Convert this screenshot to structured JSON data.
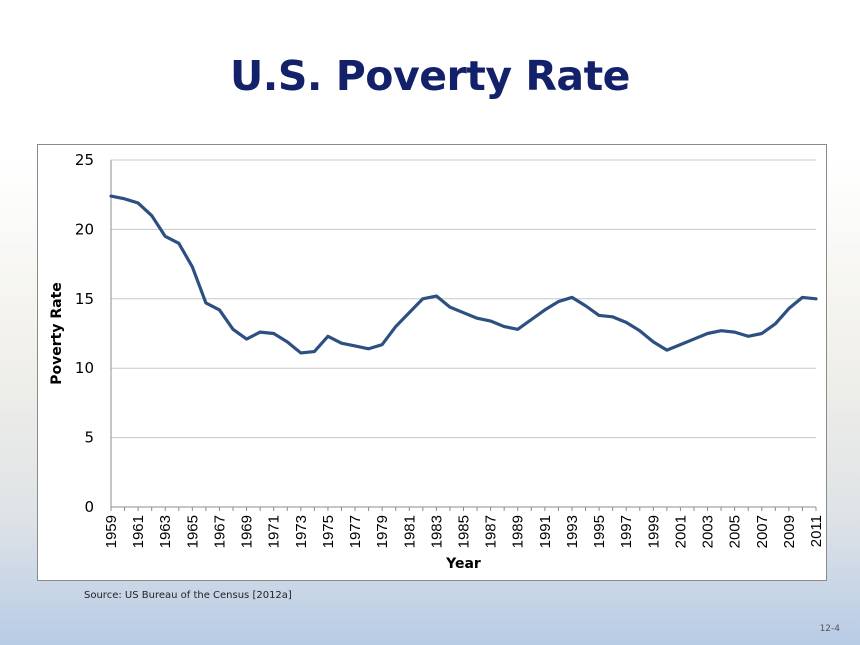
{
  "slide": {
    "title": "U.S. Poverty Rate",
    "source": "Source: US Bureau of the Census [2012a]",
    "page_number": "12-4"
  },
  "chart_data": {
    "type": "line",
    "title": "",
    "xlabel": "Year",
    "ylabel": "Poverty Rate",
    "ylim": [
      0,
      25
    ],
    "yticks": [
      0,
      5,
      10,
      15,
      20,
      25
    ],
    "grid": "horizontal",
    "legend": "none",
    "line_color": "#2d4f82",
    "x": [
      1959,
      1960,
      1961,
      1962,
      1963,
      1964,
      1965,
      1966,
      1967,
      1968,
      1969,
      1970,
      1971,
      1972,
      1973,
      1974,
      1975,
      1976,
      1977,
      1978,
      1979,
      1980,
      1981,
      1982,
      1983,
      1984,
      1985,
      1986,
      1987,
      1988,
      1989,
      1990,
      1991,
      1992,
      1993,
      1994,
      1995,
      1996,
      1997,
      1998,
      1999,
      2000,
      2001,
      2002,
      2003,
      2004,
      2005,
      2006,
      2007,
      2008,
      2009,
      2010,
      2011
    ],
    "xtick_labels": [
      "1959",
      "1961",
      "1963",
      "1965",
      "1967",
      "1969",
      "1971",
      "1973",
      "1975",
      "1977",
      "1979",
      "1981",
      "1983",
      "1985",
      "1987",
      "1989",
      "1991",
      "1993",
      "1995",
      "1997",
      "1999",
      "2001",
      "2003",
      "2005",
      "2007",
      "2009",
      "2011"
    ],
    "series": [
      {
        "values": [
          22.4,
          22.2,
          21.9,
          21.0,
          19.5,
          19.0,
          17.3,
          14.7,
          14.2,
          12.8,
          12.1,
          12.6,
          12.5,
          11.9,
          11.1,
          11.2,
          12.3,
          11.8,
          11.6,
          11.4,
          11.7,
          13.0,
          14.0,
          15.0,
          15.2,
          14.4,
          14.0,
          13.6,
          13.4,
          13.0,
          12.8,
          13.5,
          14.2,
          14.8,
          15.1,
          14.5,
          13.8,
          13.7,
          13.3,
          12.7,
          11.9,
          11.3,
          11.7,
          12.1,
          12.5,
          12.7,
          12.6,
          12.3,
          12.5,
          13.2,
          14.3,
          15.1,
          15.0
        ]
      }
    ]
  }
}
